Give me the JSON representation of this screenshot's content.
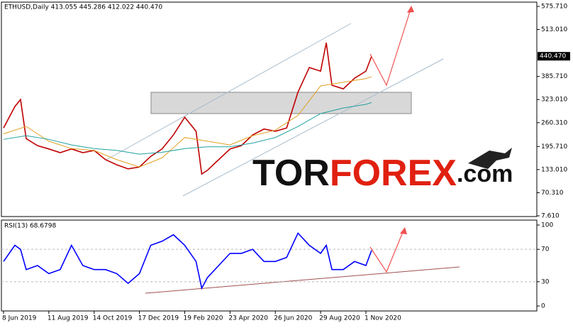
{
  "chart_data": [
    {
      "type": "line",
      "title": "ETHUSD,Daily 413.055 445.286 412.022 440.470",
      "xlim": [
        -3,
        753.5
      ],
      "ylim": [
        5.68,
        587.3
      ],
      "yticks": [
        {
          "value": 575.71,
          "label": "575.710"
        },
        {
          "value": 513.01,
          "label": "513.010"
        },
        {
          "value": 385.71,
          "label": "385.710"
        },
        {
          "value": 323.01,
          "label": "323.010"
        },
        {
          "value": 260.31,
          "label": "260.310"
        },
        {
          "value": 195.71,
          "label": "195.710"
        },
        {
          "value": 133.01,
          "label": "133.010"
        },
        {
          "value": 70.31,
          "label": "70.310"
        },
        {
          "value": 7.61,
          "label": "7.610"
        }
      ],
      "price_marker": {
        "value": 440.47,
        "label": "440.470"
      },
      "series": [
        {
          "color": "#c00000",
          "x": [
            0,
            16,
            24,
            32,
            48,
            64,
            80,
            96,
            112,
            128,
            144,
            160,
            176,
            192,
            208,
            224,
            240,
            256,
            272,
            280,
            288,
            304,
            320,
            336,
            352,
            368,
            384,
            400,
            416,
            432,
            448,
            456,
            464,
            480,
            496,
            512,
            520
          ],
          "values": [
            246,
            304,
            323,
            217,
            198,
            189,
            179,
            189,
            179,
            185,
            160,
            146,
            135,
            140,
            169,
            189,
            227,
            275,
            237,
            121,
            131,
            160,
            189,
            198,
            227,
            243,
            237,
            246,
            343,
            410,
            400,
            477,
            362,
            352,
            381,
            400,
            440.47
          ]
        },
        {
          "color": "#e0a020",
          "x": [
            0,
            32,
            64,
            96,
            128,
            160,
            192,
            224,
            256,
            288,
            320,
            352,
            384,
            416,
            448,
            480,
            512,
            520
          ],
          "values": [
            230,
            250,
            210,
            190,
            185,
            160,
            140,
            165,
            220,
            210,
            200,
            225,
            240,
            280,
            360,
            370,
            380,
            385
          ]
        },
        {
          "color": "#20a0a0",
          "x": [
            0,
            32,
            64,
            96,
            128,
            160,
            192,
            224,
            256,
            288,
            320,
            352,
            384,
            416,
            448,
            480,
            512,
            520
          ],
          "values": [
            215,
            225,
            215,
            200,
            190,
            185,
            175,
            180,
            190,
            195,
            195,
            205,
            220,
            250,
            285,
            300,
            310,
            315
          ]
        }
      ]
    },
    {
      "type": "line",
      "title": "RSI(13) 68.6798",
      "xlim": [
        -3,
        753.5
      ],
      "ylim": [
        -6.1,
        106.1
      ],
      "yticks": [
        100,
        70,
        30,
        0
      ],
      "xticks": [
        {
          "value": 0,
          "label": "8 Jun 2019"
        },
        {
          "value": 64,
          "label": "11 Aug 2019"
        },
        {
          "value": 128,
          "label": "14 Oct 2019"
        },
        {
          "value": 192,
          "label": "17 Dec 2019"
        },
        {
          "value": 256,
          "label": "19 Feb 2020"
        },
        {
          "value": 320,
          "label": "23 Apr 2020"
        },
        {
          "value": 384,
          "label": "26 Jun 2020"
        },
        {
          "value": 448,
          "label": "29 Aug 2020"
        },
        {
          "value": 512,
          "label": "1 Nov 2020"
        }
      ],
      "series": [
        {
          "color": "#0000ff",
          "x": [
            0,
            16,
            24,
            32,
            48,
            64,
            80,
            96,
            112,
            128,
            144,
            160,
            176,
            192,
            208,
            224,
            240,
            256,
            272,
            280,
            288,
            304,
            320,
            336,
            352,
            368,
            384,
            400,
            416,
            432,
            448,
            456,
            464,
            480,
            496,
            512,
            520
          ],
          "values": [
            55,
            75,
            70,
            45,
            50,
            40,
            45,
            75,
            50,
            45,
            45,
            40,
            28,
            40,
            75,
            80,
            88,
            75,
            55,
            22,
            35,
            50,
            65,
            65,
            70,
            55,
            55,
            60,
            90,
            75,
            65,
            75,
            45,
            45,
            55,
            50,
            68.68
          ]
        }
      ]
    }
  ],
  "watermark": [
    "TOR",
    "FOREX",
    ".com"
  ]
}
